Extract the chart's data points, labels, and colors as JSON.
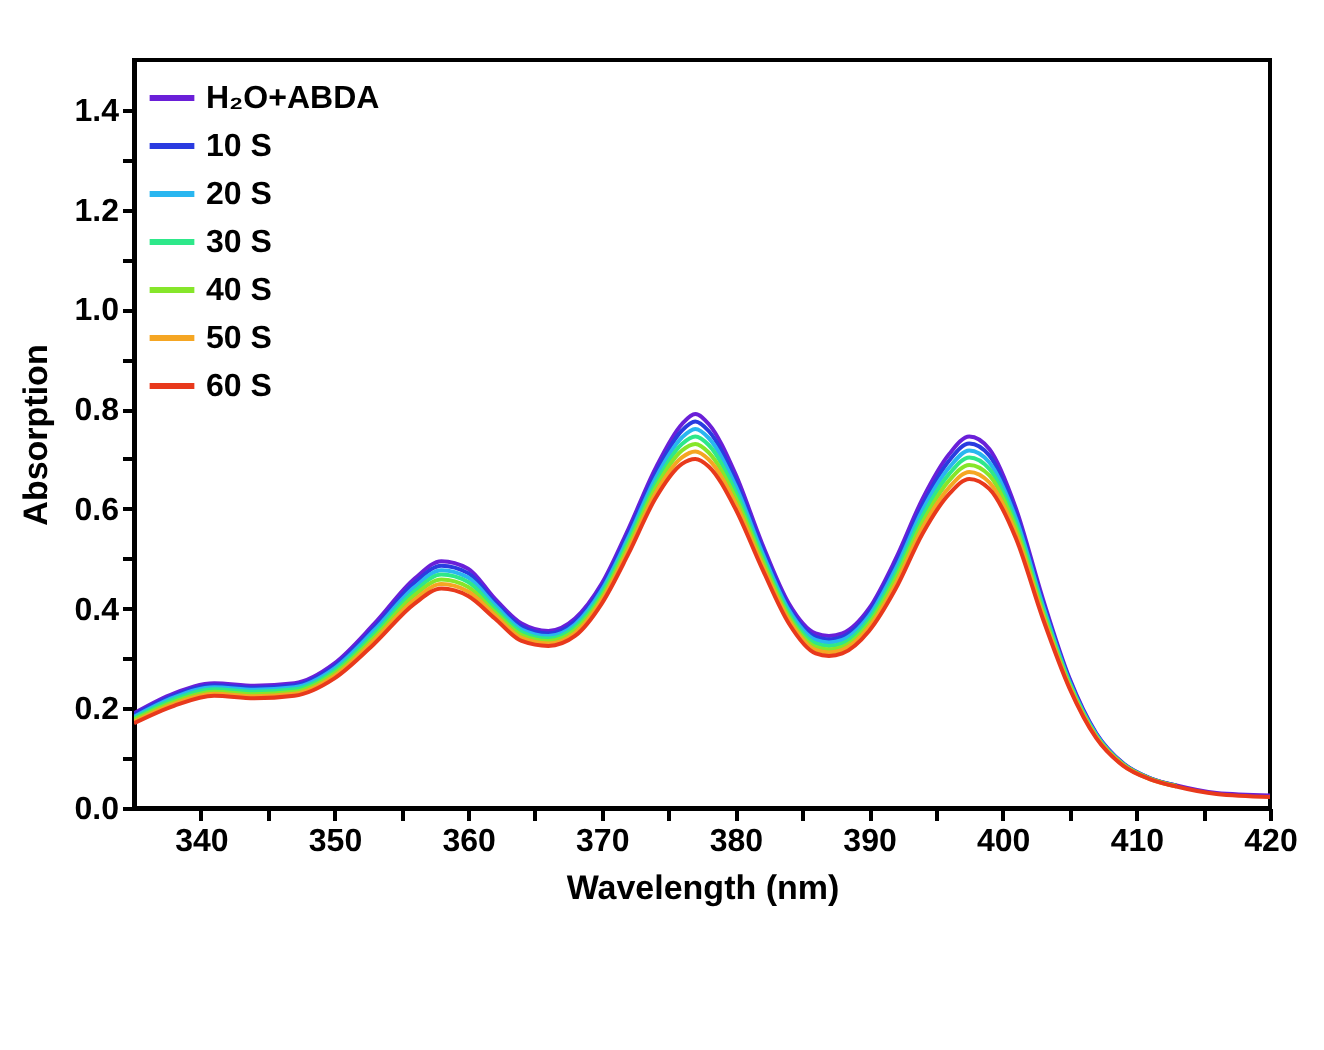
{
  "chart_data": {
    "type": "line",
    "xlabel": "Wavelength (nm)",
    "ylabel": "Absorption",
    "legend": "top left",
    "x": [
      335,
      338,
      341,
      344,
      347,
      350,
      353,
      356,
      358,
      360,
      362,
      364,
      366,
      368,
      370,
      372,
      374,
      376,
      377,
      378,
      380,
      382,
      384,
      386,
      387,
      388,
      390,
      392,
      394,
      396,
      397.5,
      399,
      401,
      403,
      405,
      407,
      409,
      411,
      413,
      416,
      420
    ],
    "xlim": [
      335,
      420
    ],
    "xticks": [
      340,
      {
        "value": 345,
        "label": null
      },
      350,
      {
        "value": 355,
        "label": null
      },
      360,
      {
        "value": 365,
        "label": null
      },
      370,
      {
        "value": 375,
        "label": null
      },
      380,
      {
        "value": 385,
        "label": null
      },
      390,
      {
        "value": 395,
        "label": null
      },
      400,
      {
        "value": 405,
        "label": null
      },
      410,
      {
        "value": 415,
        "label": null
      },
      420
    ],
    "ylim": [
      0,
      1.5
    ],
    "yticks": [
      {
        "value": 0,
        "label": "0.0"
      },
      {
        "value": 0.1,
        "label": null
      },
      0.2,
      {
        "value": 0.3,
        "label": null
      },
      0.4,
      {
        "value": 0.5,
        "label": null
      },
      0.6,
      {
        "value": 0.7,
        "label": null
      },
      0.8,
      {
        "value": 0.9,
        "label": null
      },
      {
        "value": 1,
        "label": "1.0"
      },
      {
        "value": 1.1,
        "label": null
      },
      1.2,
      {
        "value": 1.3,
        "label": null
      },
      1.4
    ],
    "series": [
      {
        "name": "H₂O+ABDA",
        "color": "#6a1fd8",
        "values": [
          0.19,
          0.23,
          0.25,
          0.245,
          0.25,
          0.29,
          0.37,
          0.46,
          0.495,
          0.48,
          0.42,
          0.37,
          0.355,
          0.38,
          0.45,
          0.56,
          0.68,
          0.77,
          0.79,
          0.77,
          0.67,
          0.53,
          0.41,
          0.35,
          0.345,
          0.35,
          0.4,
          0.5,
          0.62,
          0.71,
          0.745,
          0.72,
          0.6,
          0.42,
          0.26,
          0.15,
          0.09,
          0.06,
          0.045,
          0.03,
          0.025
        ]
      },
      {
        "name": "10 S",
        "color": "#2a3be0",
        "values": [
          0.187,
          0.226,
          0.246,
          0.241,
          0.246,
          0.285,
          0.363,
          0.452,
          0.486,
          0.471,
          0.413,
          0.364,
          0.35,
          0.374,
          0.443,
          0.552,
          0.67,
          0.757,
          0.775,
          0.756,
          0.658,
          0.522,
          0.403,
          0.343,
          0.338,
          0.343,
          0.393,
          0.49,
          0.608,
          0.697,
          0.731,
          0.707,
          0.59,
          0.413,
          0.257,
          0.148,
          0.089,
          0.06,
          0.045,
          null,
          null
        ]
      },
      {
        "name": "20 S",
        "color": "#29b6f0",
        "values": [
          0.183,
          0.222,
          0.242,
          0.237,
          0.242,
          0.28,
          0.357,
          0.443,
          0.477,
          0.462,
          0.407,
          0.358,
          0.345,
          0.368,
          0.437,
          0.543,
          0.66,
          0.743,
          0.76,
          0.742,
          0.647,
          0.513,
          0.397,
          0.337,
          0.332,
          0.337,
          0.385,
          0.48,
          0.597,
          0.683,
          0.717,
          0.693,
          0.58,
          0.407,
          0.253,
          0.147,
          0.088,
          0.059,
          null,
          null,
          null
        ]
      },
      {
        "name": "30 S",
        "color": "#2ee88a",
        "values": [
          0.18,
          0.218,
          0.238,
          0.233,
          0.238,
          0.275,
          0.35,
          0.435,
          0.468,
          0.453,
          0.4,
          0.353,
          0.34,
          0.363,
          0.43,
          0.535,
          0.65,
          0.73,
          0.745,
          0.728,
          0.635,
          0.505,
          0.39,
          0.33,
          0.325,
          0.33,
          0.378,
          0.47,
          0.585,
          0.67,
          0.703,
          0.68,
          0.57,
          0.4,
          0.25,
          0.145,
          0.088,
          0.059,
          0.044,
          null,
          null
        ]
      },
      {
        "name": "40 S",
        "color": "#86e62a",
        "values": [
          0.177,
          0.213,
          0.233,
          0.228,
          0.233,
          0.27,
          0.343,
          0.427,
          0.458,
          0.443,
          0.393,
          0.347,
          0.335,
          0.357,
          0.423,
          0.527,
          0.64,
          0.717,
          0.73,
          0.713,
          0.623,
          0.497,
          0.383,
          0.323,
          0.318,
          0.323,
          0.37,
          0.46,
          0.573,
          0.657,
          0.688,
          0.667,
          0.56,
          0.393,
          0.247,
          0.143,
          0.087,
          0.059,
          0.044,
          null,
          null
        ]
      },
      {
        "name": "50 S",
        "color": "#f5a623",
        "values": [
          0.173,
          0.209,
          0.229,
          0.224,
          0.229,
          0.265,
          0.337,
          0.418,
          0.449,
          0.434,
          0.387,
          0.341,
          0.33,
          0.351,
          0.417,
          0.518,
          0.63,
          0.703,
          0.715,
          0.699,
          0.612,
          0.488,
          0.377,
          0.317,
          0.312,
          0.317,
          0.363,
          0.45,
          0.562,
          0.643,
          0.674,
          0.653,
          0.55,
          0.387,
          0.243,
          0.142,
          0.086,
          0.058,
          0.043,
          null,
          null
        ]
      },
      {
        "name": "60 S",
        "color": "#e8391c",
        "values": [
          0.17,
          0.205,
          0.225,
          0.22,
          0.225,
          0.26,
          0.33,
          0.41,
          0.44,
          0.425,
          0.38,
          0.335,
          0.325,
          0.345,
          0.41,
          0.51,
          0.62,
          0.69,
          0.7,
          0.685,
          0.6,
          0.48,
          0.37,
          0.31,
          0.305,
          0.31,
          0.355,
          0.44,
          0.55,
          0.63,
          0.66,
          0.64,
          0.54,
          0.38,
          0.24,
          0.14,
          0.085,
          0.058,
          0.043,
          0.028,
          0.022
        ]
      }
    ]
  }
}
